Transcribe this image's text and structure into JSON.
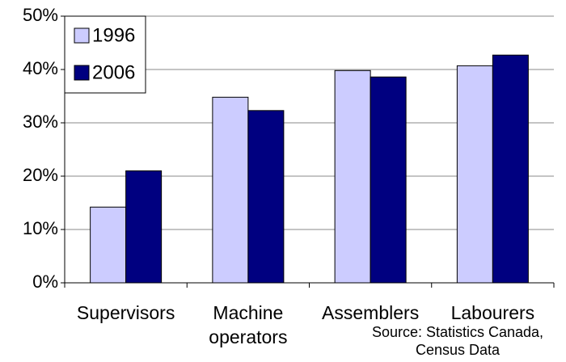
{
  "chart_data": {
    "type": "bar",
    "categories": [
      "Supervisors",
      "Machine operators",
      "Assemblers",
      "Labourers"
    ],
    "series": [
      {
        "name": "1996",
        "color": "#ccccff",
        "values": [
          14.2,
          34.8,
          39.8,
          40.7
        ]
      },
      {
        "name": "2006",
        "color": "#000080",
        "values": [
          21,
          32.3,
          38.6,
          42.7
        ]
      }
    ],
    "ylim": [
      0,
      50
    ],
    "yticks": [
      {
        "value": 0,
        "label": "0%"
      },
      {
        "value": 10,
        "label": "10%"
      },
      {
        "value": 20,
        "label": "20%"
      },
      {
        "value": 30,
        "label": "30%"
      },
      {
        "value": 40,
        "label": "40%"
      },
      {
        "value": 50,
        "label": "50%"
      }
    ],
    "grid": true,
    "legend": "top-left",
    "source": "Source: Statistics Canada, Census Data"
  }
}
